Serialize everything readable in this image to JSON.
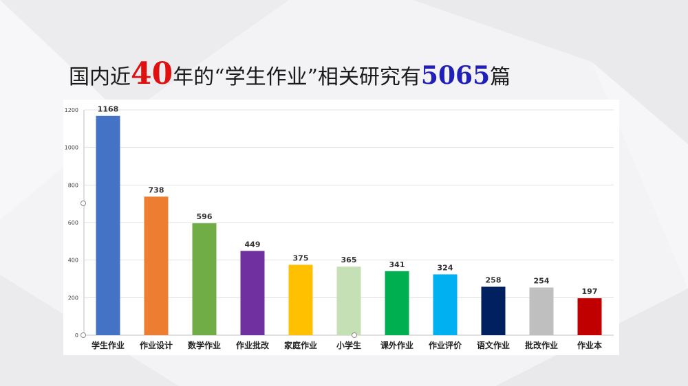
{
  "title": {
    "part1": "国内近",
    "highlight_years": "40",
    "part2": "年的“学生作业”相关研究有",
    "highlight_count": "5065",
    "part3": "篇"
  },
  "colors": {
    "title_red": "#e01010",
    "title_blue": "#2020b8"
  },
  "chart_data": {
    "type": "bar",
    "categories": [
      "学生作业",
      "作业设计",
      "数学作业",
      "作业批改",
      "家庭作业",
      "小学生",
      "课外作业",
      "作业评价",
      "语文作业",
      "批改作业",
      "作业本"
    ],
    "values": [
      1168,
      738,
      596,
      449,
      375,
      365,
      341,
      324,
      258,
      254,
      197
    ],
    "colors": [
      "#4472c4",
      "#ed7d31",
      "#70ad47",
      "#7030a0",
      "#ffc000",
      "#c5e0b4",
      "#00b050",
      "#00b0f0",
      "#002060",
      "#bfbfbf",
      "#c00000"
    ],
    "yticks": [
      0,
      200,
      400,
      600,
      800,
      1000,
      1200
    ],
    "ylim": [
      0,
      1200
    ],
    "grid": true,
    "legend": false,
    "data_labels": true
  }
}
